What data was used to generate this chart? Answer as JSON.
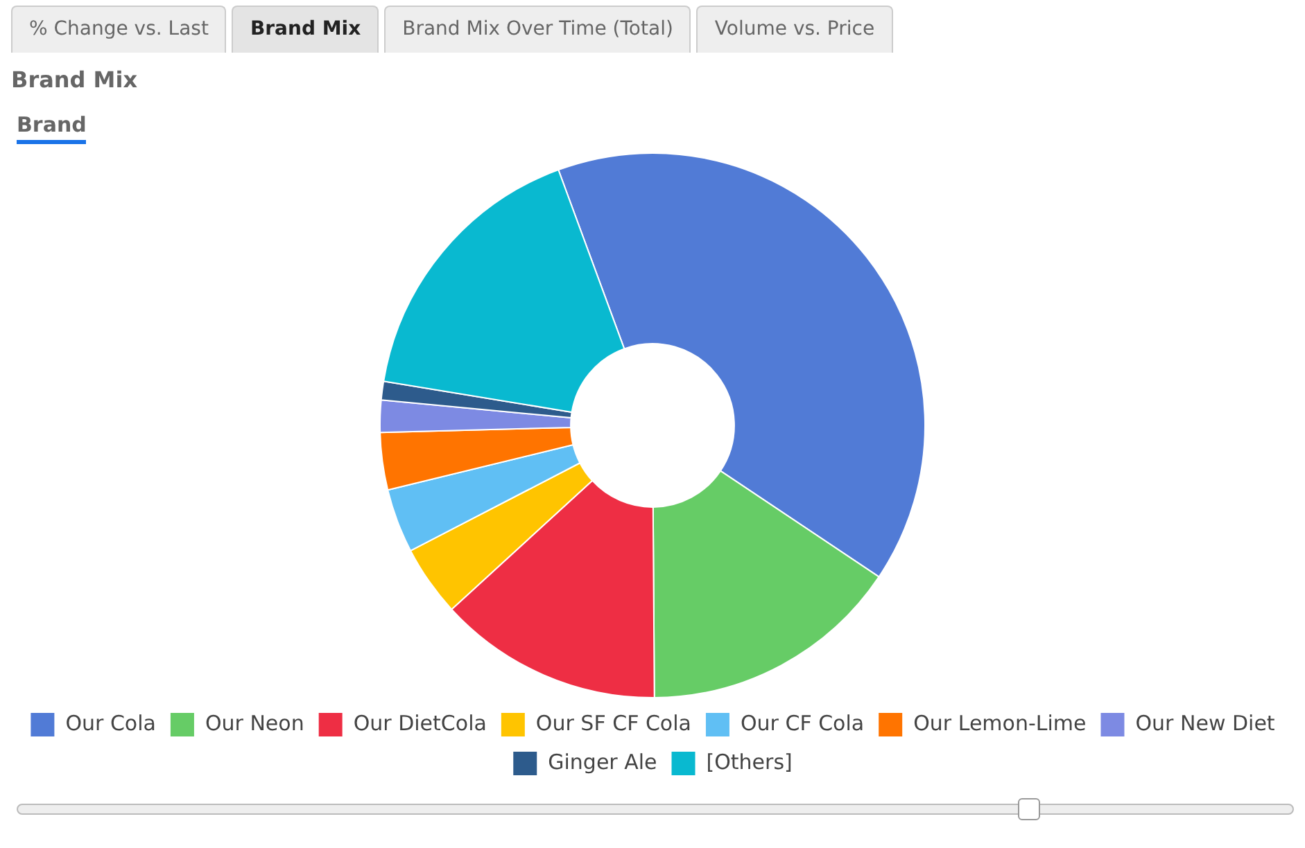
{
  "chart_data": {
    "type": "donut",
    "title": "Brand Mix",
    "subtitle": "Brand",
    "annotations": [
      "% Change vs. Last",
      "Brand Mix",
      "Brand Mix Over Time (Total)",
      "Volume vs. Price"
    ],
    "categories": [
      "Our Cola",
      "Our Neon",
      "Our DietCola",
      "Our SF CF Cola",
      "Our CF Cola",
      "Our Lemon-Lime",
      "Our New Diet",
      "Ginger Ale",
      "[Others]"
    ],
    "values": [
      40.0,
      15.5,
      13.3,
      4.2,
      3.8,
      3.4,
      1.9,
      1.1,
      16.8
    ],
    "colors": [
      "#517bd6",
      "#66cc66",
      "#ee2e44",
      "#ffc400",
      "#60bff4",
      "#ff7400",
      "#7d8ae3",
      "#2d5b8c",
      "#09b9d0"
    ],
    "legend": "bottom"
  }
}
